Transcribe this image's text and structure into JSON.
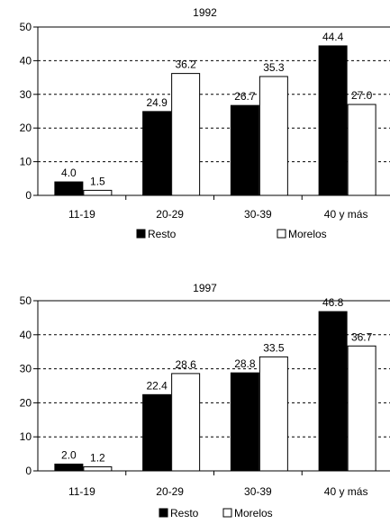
{
  "chart_data": [
    {
      "type": "bar",
      "title": "1992",
      "categories": [
        "11-19",
        "20-29",
        "30-39",
        "40 y más"
      ],
      "series": [
        {
          "name": "Resto",
          "values": [
            4.0,
            24.9,
            26.7,
            44.4
          ],
          "labels": [
            "4.0",
            "24.9",
            "26.7",
            "44.4"
          ],
          "color": "#000000"
        },
        {
          "name": "Morelos",
          "values": [
            1.5,
            36.2,
            35.3,
            27.0
          ],
          "labels": [
            "1.5",
            "36.2",
            "35.3",
            "27.0"
          ],
          "color": "#ffffff"
        }
      ],
      "ylim": [
        0,
        50
      ],
      "yticks": [
        "0",
        "10",
        "20",
        "30",
        "40",
        "50"
      ],
      "grid": "horizontal dashed",
      "legend": "bottom"
    },
    {
      "type": "bar",
      "title": "1997",
      "categories": [
        "11-19",
        "20-29",
        "30-39",
        "40 y más"
      ],
      "series": [
        {
          "name": "Resto",
          "values": [
            2.0,
            22.4,
            28.8,
            46.8
          ],
          "labels": [
            "2.0",
            "22.4",
            "28.8",
            "46.8"
          ],
          "color": "#000000"
        },
        {
          "name": "Morelos",
          "values": [
            1.2,
            28.6,
            33.5,
            36.7
          ],
          "labels": [
            "1.2",
            "28.6",
            "33.5",
            "36.7"
          ],
          "color": "#ffffff"
        }
      ],
      "ylim": [
        0,
        50
      ],
      "yticks": [
        "0",
        "10",
        "20",
        "30",
        "40",
        "50"
      ],
      "grid": "horizontal dashed",
      "legend": "bottom"
    }
  ]
}
